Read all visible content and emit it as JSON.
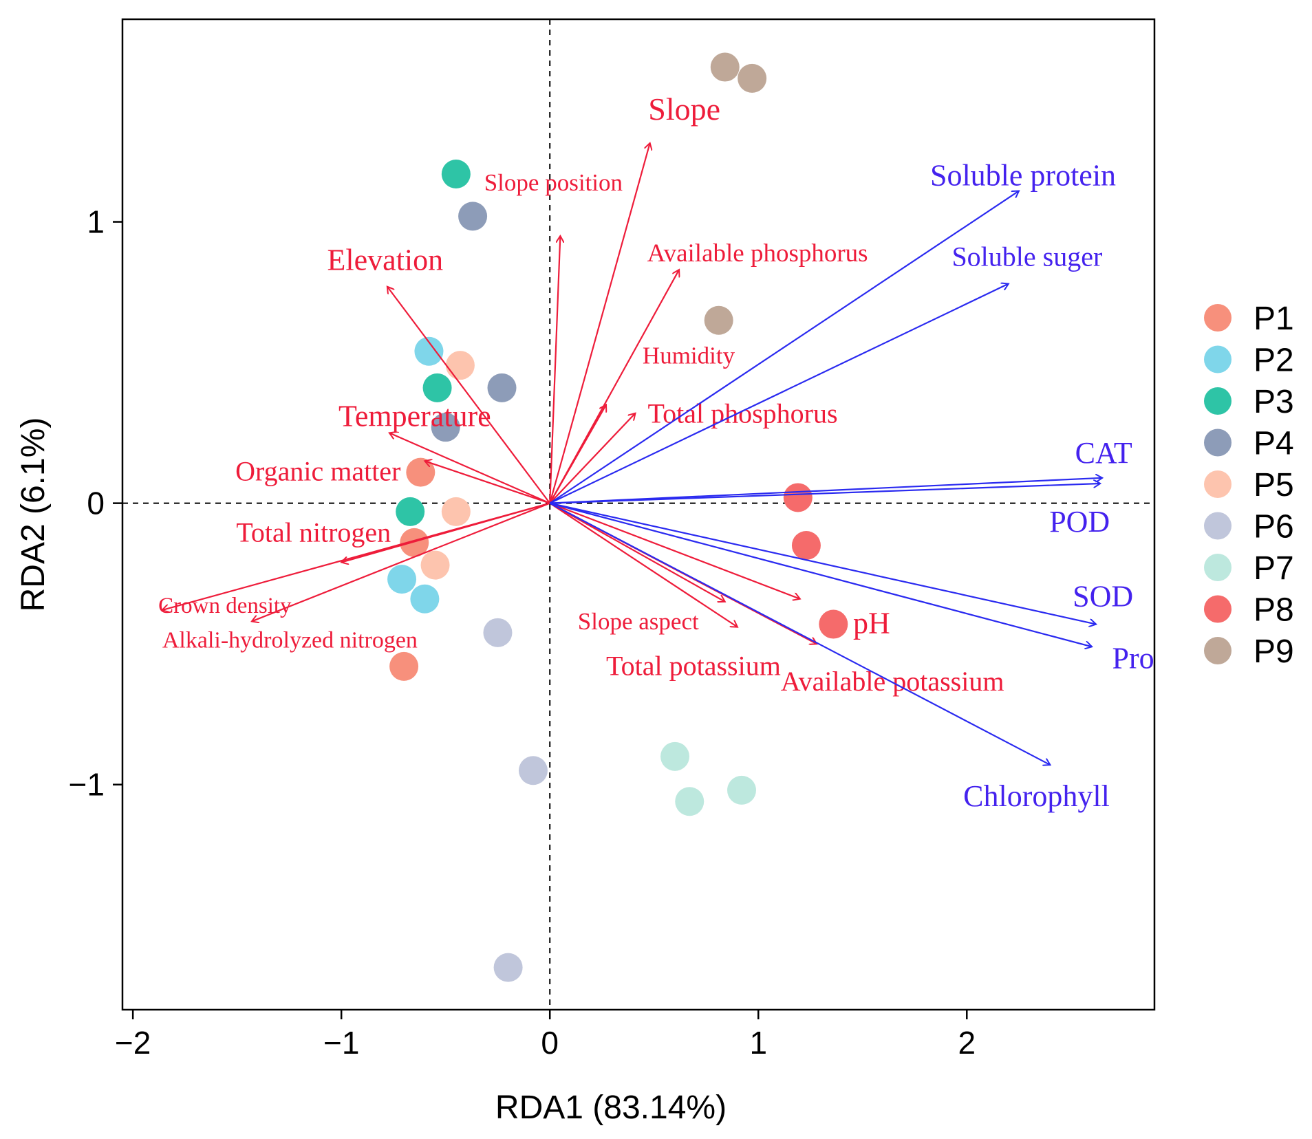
{
  "chart_data": {
    "type": "scatter",
    "subtype": "rda-biplot",
    "xlabel": "RDA1  (83.14%)",
    "ylabel": "RDA2  (6.1%)",
    "xlim": [
      -2.05,
      2.9
    ],
    "ylim": [
      -1.8,
      1.72
    ],
    "xticks": [
      -2,
      -1,
      0,
      1,
      2
    ],
    "xtick_labels": [
      "−2",
      "−1",
      "0",
      "1",
      "2"
    ],
    "yticks": [
      -1,
      0,
      1
    ],
    "ytick_labels": [
      "−1",
      "0",
      "1"
    ],
    "reference_lines": {
      "x": 0,
      "y": 0,
      "style": "dashed"
    },
    "legend_position": "right",
    "groups": [
      {
        "name": "P1",
        "color": "#f7907c",
        "points": [
          [
            -0.62,
            0.11
          ],
          [
            -0.65,
            -0.14
          ],
          [
            -0.7,
            -0.58
          ]
        ]
      },
      {
        "name": "P2",
        "color": "#7fd6ea",
        "points": [
          [
            -0.58,
            0.54
          ],
          [
            -0.71,
            -0.27
          ],
          [
            -0.6,
            -0.34
          ]
        ]
      },
      {
        "name": "P3",
        "color": "#2ec4a6",
        "points": [
          [
            -0.45,
            1.17
          ],
          [
            -0.54,
            0.41
          ],
          [
            -0.67,
            -0.03
          ]
        ]
      },
      {
        "name": "P4",
        "color": "#8d9cb8",
        "points": [
          [
            -0.37,
            1.02
          ],
          [
            -0.23,
            0.41
          ],
          [
            -0.5,
            0.27
          ]
        ]
      },
      {
        "name": "P5",
        "color": "#fdc4ae",
        "points": [
          [
            -0.43,
            0.49
          ],
          [
            -0.45,
            -0.03
          ],
          [
            -0.55,
            -0.22
          ]
        ]
      },
      {
        "name": "P6",
        "color": "#c0c6db",
        "points": [
          [
            -0.25,
            -0.46
          ],
          [
            -0.08,
            -0.95
          ],
          [
            -0.2,
            -1.65
          ]
        ]
      },
      {
        "name": "P7",
        "color": "#bde8de",
        "points": [
          [
            0.6,
            -0.9
          ],
          [
            0.67,
            -1.06
          ],
          [
            0.92,
            -1.02
          ]
        ]
      },
      {
        "name": "P8",
        "color": "#f56b6b",
        "points": [
          [
            1.19,
            0.02
          ],
          [
            1.23,
            -0.15
          ],
          [
            1.36,
            -0.43
          ]
        ]
      },
      {
        "name": "P9",
        "color": "#bfa898",
        "points": [
          [
            0.84,
            1.55
          ],
          [
            0.97,
            1.51
          ],
          [
            0.81,
            0.65
          ]
        ]
      }
    ],
    "environmental_vectors": {
      "color": "#ee1c3a",
      "vectors": [
        {
          "name": "Slope",
          "x": 0.48,
          "y": 1.28
        },
        {
          "name": "Slope position",
          "x": 0.05,
          "y": 0.95
        },
        {
          "name": "Available phosphorus",
          "x": 0.62,
          "y": 0.83
        },
        {
          "name": "Elevation",
          "x": -0.78,
          "y": 0.77
        },
        {
          "name": "Humidity",
          "x": 0.27,
          "y": 0.35
        },
        {
          "name": "Total phosphorus",
          "x": 0.41,
          "y": 0.32
        },
        {
          "name": "Temperature",
          "x": -0.77,
          "y": 0.25
        },
        {
          "name": "Organic matter",
          "x": -0.6,
          "y": 0.15
        },
        {
          "name": "Total nitrogen",
          "x": -1.0,
          "y": -0.21
        },
        {
          "name": "Crown density",
          "x": -1.86,
          "y": -0.38
        },
        {
          "name": "Alkali-hydrolyzed nitrogen",
          "x": -1.43,
          "y": -0.42
        },
        {
          "name": "Slope aspect",
          "x": 0.84,
          "y": -0.35
        },
        {
          "name": "Total potassium",
          "x": 0.9,
          "y": -0.44
        },
        {
          "name": "pH",
          "x": 1.2,
          "y": -0.34
        },
        {
          "name": "Available potassium",
          "x": 1.28,
          "y": -0.5
        }
      ]
    },
    "response_vectors": {
      "color": "#2a2af0",
      "vectors": [
        {
          "name": "Soluble protein",
          "x": 2.25,
          "y": 1.11
        },
        {
          "name": "Soluble suger",
          "x": 2.2,
          "y": 0.78
        },
        {
          "name": "CAT",
          "x": 2.65,
          "y": 0.09
        },
        {
          "name": "POD",
          "x": 2.64,
          "y": 0.07
        },
        {
          "name": "SOD",
          "x": 2.62,
          "y": -0.43
        },
        {
          "name": "Pro",
          "x": 2.6,
          "y": -0.51
        },
        {
          "name": "Chlorophyll",
          "x": 2.4,
          "y": -0.93
        }
      ]
    }
  }
}
